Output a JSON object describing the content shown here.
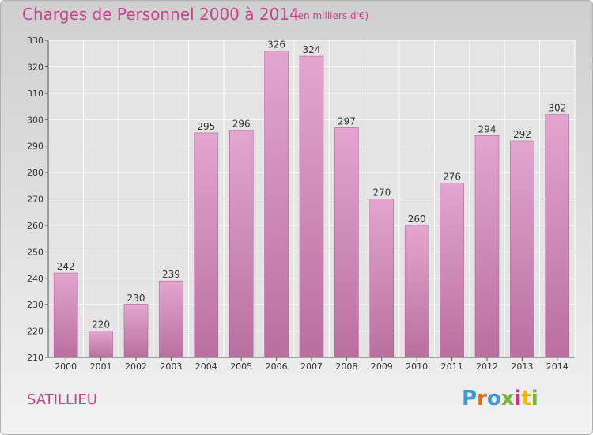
{
  "header": {
    "title": "Charges de Personnel 2000 à 2014",
    "unit": "(en milliers d'€)"
  },
  "footer": {
    "commune": "SATILLIEU",
    "logo_text": "Proxiti"
  },
  "colors": {
    "title": "#c4448f",
    "bar_top": "#e2a6cf",
    "bar_bottom": "#b96fa0",
    "axis": "#555555"
  },
  "chart_data": {
    "type": "bar",
    "title": "Charges de Personnel 2000 à 2014",
    "subtitle": "(en milliers d'€)",
    "xlabel": "",
    "ylabel": "",
    "categories": [
      "2000",
      "2001",
      "2002",
      "2003",
      "2004",
      "2005",
      "2006",
      "2007",
      "2008",
      "2009",
      "2010",
      "2011",
      "2012",
      "2013",
      "2014"
    ],
    "values": [
      242,
      220,
      230,
      239,
      295,
      296,
      326,
      324,
      297,
      270,
      260,
      276,
      294,
      292,
      302
    ],
    "ylim": [
      210,
      330
    ],
    "yticks": [
      210,
      220,
      230,
      240,
      250,
      260,
      270,
      280,
      290,
      300,
      310,
      320,
      330
    ],
    "grid": "horizontal",
    "data_labels": true
  }
}
